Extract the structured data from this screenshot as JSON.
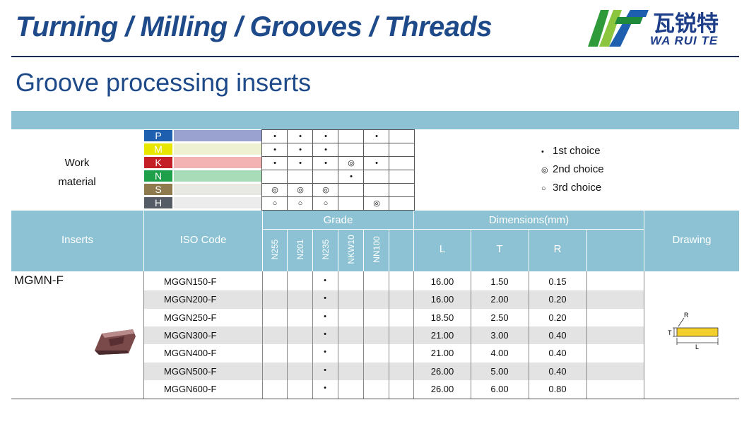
{
  "header": {
    "title": "Turning / Milling / Grooves / Threads"
  },
  "logo": {
    "chinese": "瓦锐特",
    "english": "WA RUI TE"
  },
  "page_title": "Groove processing inserts",
  "work_material": {
    "label_line1": "Work",
    "label_line2": "material",
    "materials": [
      {
        "letter": "P",
        "color": "#1f5fb0",
        "bar_color": "#9aa2cf",
        "marks": [
          "•",
          "•",
          "•",
          "",
          "•",
          ""
        ]
      },
      {
        "letter": "M",
        "color": "#e8e500",
        "bar_color": "#eef2d2",
        "marks": [
          "•",
          "•",
          "•",
          "",
          "",
          ""
        ]
      },
      {
        "letter": "K",
        "color": "#c41f26",
        "bar_color": "#f4b3b3",
        "marks": [
          "•",
          "•",
          "•",
          "◎",
          "•",
          ""
        ]
      },
      {
        "letter": "N",
        "color": "#1ea04a",
        "bar_color": "#a8dcb8",
        "marks": [
          "",
          "",
          "",
          "•",
          "",
          ""
        ]
      },
      {
        "letter": "S",
        "color": "#8f7a4e",
        "bar_color": "#e9e9e3",
        "marks": [
          "◎",
          "◎",
          "◎",
          "",
          "",
          ""
        ]
      },
      {
        "letter": "H",
        "color": "#555c66",
        "bar_color": "#ececec",
        "marks": [
          "○",
          "○",
          "○",
          "",
          "◎",
          ""
        ]
      }
    ]
  },
  "legend": [
    {
      "symbol": "•",
      "label": "1st choice"
    },
    {
      "symbol": "◎",
      "label": "2nd choice"
    },
    {
      "symbol": "○",
      "label": "3rd choice"
    }
  ],
  "table": {
    "col_inserts": "Inserts",
    "col_iso": "ISO Code",
    "col_grade": "Grade",
    "grades": [
      "N255",
      "N201",
      "N235",
      "NKW10",
      "NN100"
    ],
    "col_dimensions": "Dimensions(mm)",
    "dims": [
      "L",
      "T",
      "R"
    ],
    "col_drawing": "Drawing",
    "insert_name": "MGMN-F",
    "rows": [
      {
        "code": "MGGN150-F",
        "grade_mark": "•",
        "L": "16.00",
        "T": "1.50",
        "R": "0.15"
      },
      {
        "code": "MGGN200-F",
        "grade_mark": "•",
        "L": "16.00",
        "T": "2.00",
        "R": "0.20"
      },
      {
        "code": "MGGN250-F",
        "grade_mark": "•",
        "L": "18.50",
        "T": "2.50",
        "R": "0.20"
      },
      {
        "code": "MGGN300-F",
        "grade_mark": "•",
        "L": "21.00",
        "T": "3.00",
        "R": "0.40"
      },
      {
        "code": "MGGN400-F",
        "grade_mark": "•",
        "L": "21.00",
        "T": "4.00",
        "R": "0.40"
      },
      {
        "code": "MGGN500-F",
        "grade_mark": "•",
        "L": "26.00",
        "T": "5.00",
        "R": "0.40"
      },
      {
        "code": "MGGN600-F",
        "grade_mark": "•",
        "L": "26.00",
        "T": "6.00",
        "R": "0.80"
      }
    ]
  },
  "drawing": {
    "label_r": "R",
    "label_t": "T",
    "label_l": "L"
  }
}
